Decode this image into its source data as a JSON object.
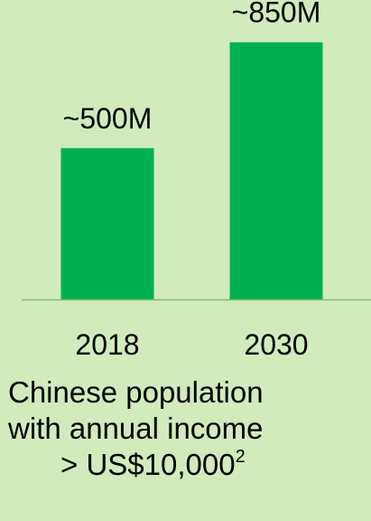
{
  "chart_data": {
    "type": "bar",
    "categories": [
      "2018",
      "2030"
    ],
    "values": [
      500,
      850
    ],
    "value_unit": "M",
    "data_labels": [
      "~500M",
      "~850M"
    ],
    "ylim": [
      0,
      900
    ],
    "grid": false,
    "legend": "none",
    "bar_color": "#00b050",
    "axis_color": "#7fbf6a",
    "caption": {
      "line1": "Chinese population",
      "line2": "with annual income",
      "line3": "> US$10,000",
      "footnote": "2"
    }
  }
}
